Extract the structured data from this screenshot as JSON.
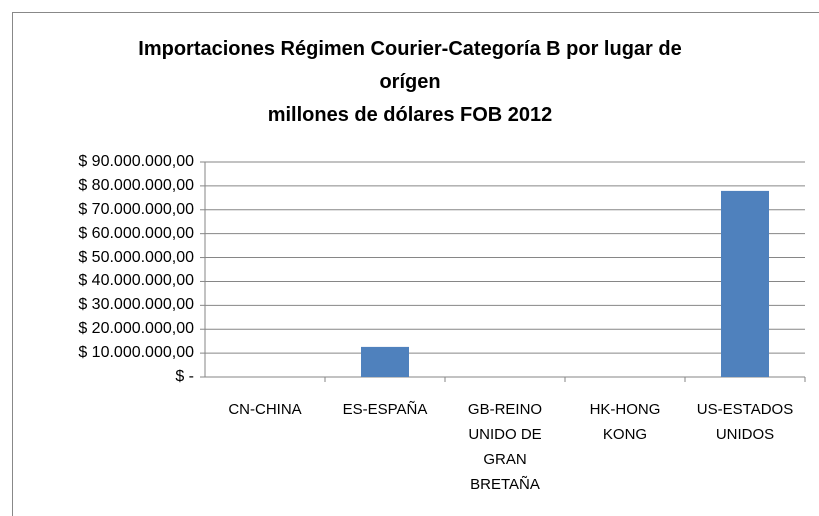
{
  "chart_data": {
    "type": "bar",
    "title": "Importaciones Régimen Courier-Categoría B por lugar de orígen",
    "subtitle": "millones de dólares FOB 2012",
    "categories": [
      "CN-CHINA",
      "ES-ESPAÑA",
      "GB-REINO UNIDO DE GRAN BRETAÑA",
      "HK-HONG KONG",
      "US-ESTADOS UNIDOS"
    ],
    "values": [
      0,
      12600000,
      0,
      0,
      77900000
    ],
    "color": "#4f81bd",
    "ylim": [
      0,
      90000000
    ],
    "yticks": [
      {
        "value": 0,
        "label": "$ -"
      },
      {
        "value": 10000000,
        "label": "$ 10.000.000,00"
      },
      {
        "value": 20000000,
        "label": "$ 20.000.000,00"
      },
      {
        "value": 30000000,
        "label": "$ 30.000.000,00"
      },
      {
        "value": 40000000,
        "label": "$ 40.000.000,00"
      },
      {
        "value": 50000000,
        "label": "$ 50.000.000,00"
      },
      {
        "value": 60000000,
        "label": "$ 60.000.000,00"
      },
      {
        "value": 70000000,
        "label": "$ 70.000.000,00"
      },
      {
        "value": 80000000,
        "label": "$ 80.000.000,00"
      },
      {
        "value": 90000000,
        "label": "$ 90.000.000,00"
      }
    ],
    "grid": true
  }
}
